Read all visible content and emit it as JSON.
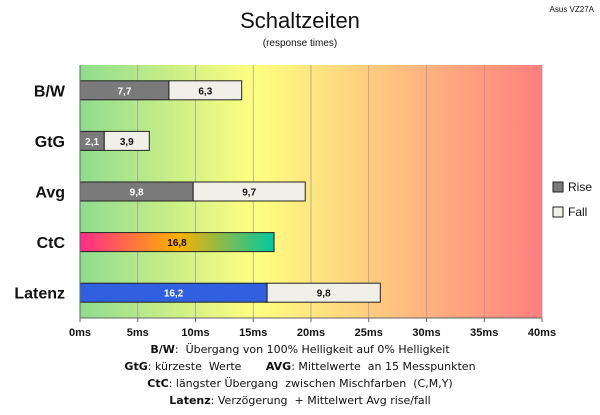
{
  "title": "Schaltzeiten",
  "subtitle": "(response times)",
  "model": "Asus VZ27A",
  "chart_data": {
    "type": "bar",
    "orientation": "horizontal",
    "stacked": true,
    "categories": [
      "B/W",
      "GtG",
      "Avg",
      "CtC",
      "Latenz"
    ],
    "series": [
      {
        "name": "Rise",
        "values": [
          7.7,
          2.1,
          9.8,
          16.8,
          16.2
        ],
        "labels": [
          "7,7",
          "2,1",
          "9,8",
          "16,8",
          "16,2"
        ]
      },
      {
        "name": "Fall",
        "values": [
          6.3,
          3.9,
          9.7,
          null,
          9.8
        ],
        "labels": [
          "6,3",
          "3,9",
          "9,7",
          "",
          "9,8"
        ]
      }
    ],
    "xlim": [
      0,
      40
    ],
    "xticks": [
      "0ms",
      "5ms",
      "10ms",
      "15ms",
      "20ms",
      "25ms",
      "30ms",
      "35ms",
      "40ms"
    ],
    "legend_position": "right",
    "grid": true,
    "background_gradient": [
      "#8fdc8f",
      "#ffff80",
      "#ff7f7f"
    ],
    "colors": {
      "rise": "#7a7a7a",
      "fall": "#f0efe8",
      "ctc_gradient": [
        "#ff2a8a",
        "#ffb000",
        "#00c8a0"
      ],
      "latenz": "#3060e0"
    }
  },
  "footnotes": [
    {
      "key": "B/W",
      "text": ":  Übergang von 100% Helligkeit auf 0% Helligkeit"
    },
    {
      "key": "GtG",
      "text": ": kürzeste  Werte       ",
      "key2": "AVG",
      "text2": ": Mittelwerte  an 15 Messpunkten"
    },
    {
      "key": "CtC",
      "text": ": längster Übergang  zwischen Mischfarben  (C,M,Y)"
    },
    {
      "key": "Latenz",
      "text": ": Verzögerung  + Mittelwert Avg rise/fall"
    }
  ]
}
